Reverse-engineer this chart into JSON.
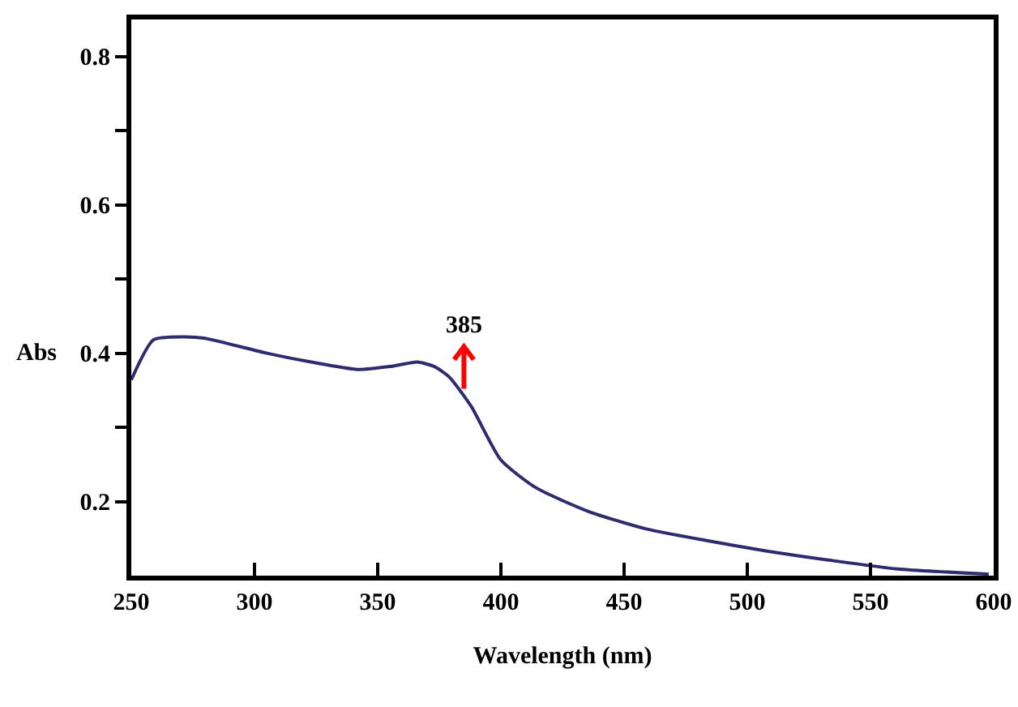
{
  "chart_data": {
    "type": "line",
    "xlabel": "Wavelength (nm)",
    "ylabel": "Abs",
    "x": [
      250,
      259,
      271,
      280,
      305,
      323,
      342,
      355,
      366,
      373,
      379,
      388,
      400,
      414,
      436,
      459,
      484,
      508,
      533,
      561,
      598
    ],
    "series": [
      {
        "color": "#2e2c6e",
        "values": [
          0.364,
          0.418,
          0.422,
          0.42,
          0.4,
          0.388,
          0.378,
          0.382,
          0.388,
          0.382,
          0.368,
          0.328,
          0.256,
          0.219,
          0.186,
          0.163,
          0.147,
          0.133,
          0.121,
          0.109,
          0.102
        ]
      }
    ],
    "xlim": [
      250,
      600
    ],
    "xticks": [
      250,
      300,
      350,
      400,
      450,
      500,
      550,
      600
    ],
    "ylim": [
      0.1,
      0.85
    ],
    "yticks": [
      0.2,
      {
        "value": 0.3,
        "label": null
      },
      0.4,
      {
        "value": 0.5,
        "label": null
      },
      0.6,
      {
        "value": 0.7,
        "label": null
      },
      0.8
    ],
    "annotations": [
      {
        "text": "385",
        "x": 385,
        "y": 0.341
      }
    ],
    "grid": false,
    "marker": "none",
    "line_style": "solid"
  }
}
